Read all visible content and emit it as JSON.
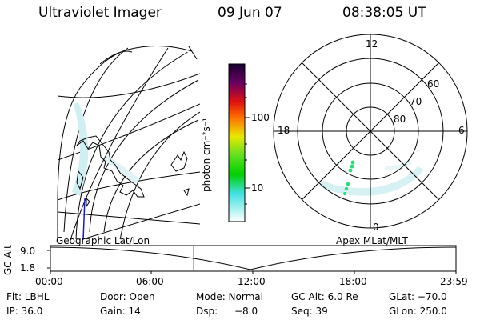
{
  "header": {
    "title": "Ultraviolet Imager",
    "date": "09 Jun 07",
    "time": "08:38:05 UT"
  },
  "colorbar": {
    "label": "photon cm⁻²s⁻¹",
    "ticks": [
      "100",
      "10"
    ]
  },
  "polar_plot": {
    "mlt_labels": {
      "top": "12",
      "left": "18",
      "right": "6",
      "bottom": "0"
    },
    "lat_labels": [
      "60",
      "70",
      "80"
    ]
  },
  "altitude_plot": {
    "left_title": "Geographic Lat/Lon",
    "right_title": "Apex MLat/MLT",
    "ylabel": "GC Alt",
    "yticks": [
      "9.0",
      "1.8"
    ],
    "xticks": [
      "00:00",
      "06:00",
      "12:00",
      "18:00",
      "23:59"
    ]
  },
  "footer": {
    "flt": "Flt: LBHL",
    "door": "Door: Open",
    "mode": "Mode: Normal",
    "gc_alt": "GC Alt: 6.0 Re",
    "glat": "GLat: −70.0",
    "ip": "IP: 36.0",
    "gain": "Gain: 14",
    "dsp_label": "Dsp:",
    "dsp_value": "−8.0",
    "seq": "Seq: 39",
    "glon": "GLon: 250.0"
  },
  "colors": {
    "colorbar_top": "#1a0030",
    "colorbar_red": "#e01010",
    "colorbar_yellow": "#e8e800",
    "colorbar_green": "#00d000",
    "colorbar_cyan": "#40e0e0",
    "aurora": "#cfeff2",
    "time_marker": "#e03030",
    "meridian": "#1a1acc"
  }
}
